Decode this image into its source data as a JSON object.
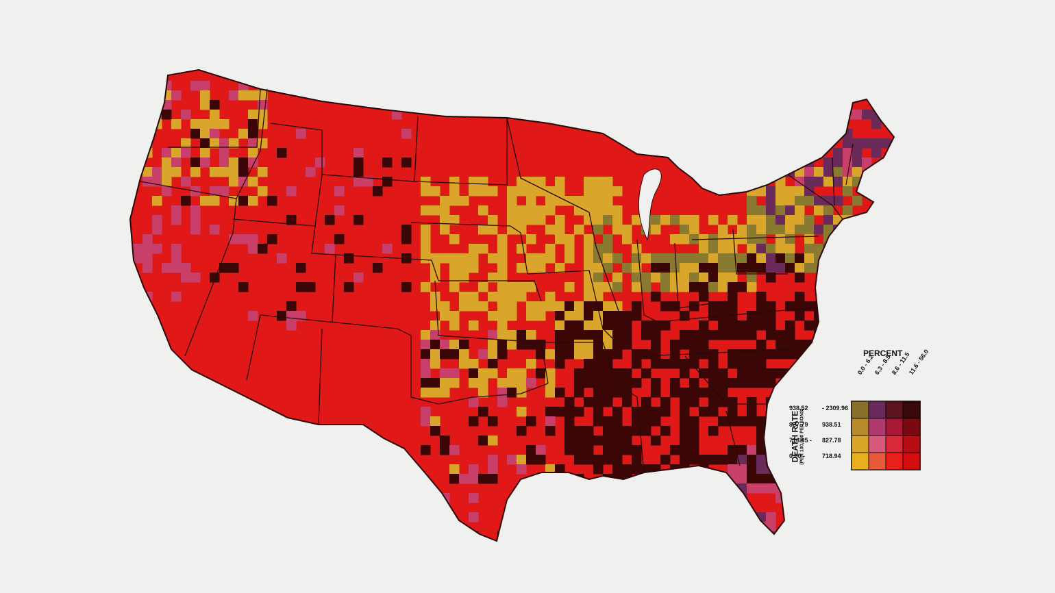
{
  "legend": {
    "percent_title": "PERCENT",
    "percent_classes": [
      "0.0 - 6.2",
      "6.3 - 8.5",
      "8.6 - 11.5",
      "11.6 - 56.0"
    ],
    "axis_title": "DEATH RATE",
    "axis_subtitle": "(PER 100,000 PERSONS)",
    "death_rate_classes": [
      {
        "low": "938.52",
        "high": "- 2309.96"
      },
      {
        "low": "827.79",
        "high": "938.51"
      },
      {
        "low": "718.95 -",
        "high": "827.78"
      },
      {
        "low": "0.00 -",
        "high": "718.94"
      }
    ],
    "colors": [
      [
        "#8a6f2a",
        "#6b2a5e",
        "#5e1420",
        "#3a0808"
      ],
      [
        "#b88a2c",
        "#b03a6e",
        "#a81835",
        "#7a0a10"
      ],
      [
        "#d9a62a",
        "#d85a7a",
        "#d92a3a",
        "#b80d14"
      ],
      [
        "#e8b01e",
        "#e85a3a",
        "#e8201a",
        "#d40d0d"
      ]
    ]
  },
  "map_colors": {
    "base": "#e01818",
    "dark": "#3a0606",
    "gold": "#d9a52a",
    "pink": "#c8406a",
    "purple": "#6a2a5a",
    "olive": "#8a7a30",
    "boundary": "#2a0808"
  }
}
